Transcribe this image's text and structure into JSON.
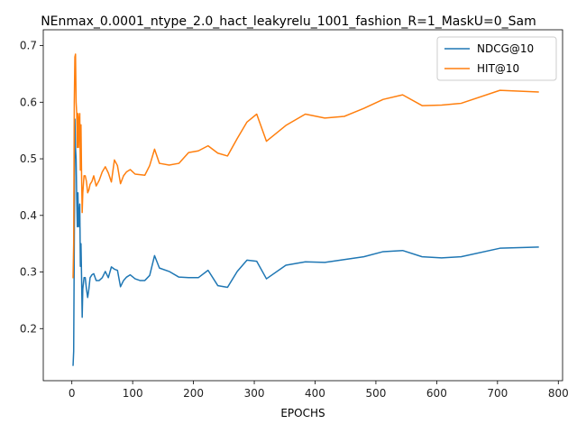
{
  "chart_data": {
    "type": "line",
    "title": "NEnmax_0.0001_ntype_2.0_hact_leakyrelu_1001_fashion_R=1_MaskU=0_Sam",
    "xlabel": "EPOCHS",
    "ylabel": "",
    "xlim": [
      -47,
      807
    ],
    "ylim": [
      0.108,
      0.728
    ],
    "xticks": [
      0,
      100,
      200,
      300,
      400,
      500,
      600,
      700,
      800
    ],
    "yticks": [
      0.2,
      0.3,
      0.4,
      0.5,
      0.6,
      0.7
    ],
    "legend_position": "top-right",
    "grid": false,
    "series": [
      {
        "name": "NDCG@10",
        "color": "#1f77b4",
        "points": [
          [
            1,
            0.135
          ],
          [
            2,
            0.135
          ],
          [
            3,
            0.16
          ],
          [
            4,
            0.35
          ],
          [
            5,
            0.57
          ],
          [
            6,
            0.52
          ],
          [
            7,
            0.5
          ],
          [
            8,
            0.43
          ],
          [
            9,
            0.38
          ],
          [
            10,
            0.44
          ],
          [
            11,
            0.38
          ],
          [
            12,
            0.4
          ],
          [
            13,
            0.42
          ],
          [
            14,
            0.31
          ],
          [
            15,
            0.35
          ],
          [
            16,
            0.29
          ],
          [
            17,
            0.22
          ],
          [
            18,
            0.27
          ],
          [
            20,
            0.29
          ],
          [
            22,
            0.29
          ],
          [
            24,
            0.27
          ],
          [
            26,
            0.255
          ],
          [
            28,
            0.27
          ],
          [
            30,
            0.29
          ],
          [
            33,
            0.295
          ],
          [
            36,
            0.297
          ],
          [
            40,
            0.285
          ],
          [
            45,
            0.285
          ],
          [
            50,
            0.29
          ],
          [
            55,
            0.301
          ],
          [
            60,
            0.29
          ],
          [
            65,
            0.309
          ],
          [
            70,
            0.305
          ],
          [
            75,
            0.303
          ],
          [
            80,
            0.274
          ],
          [
            85,
            0.285
          ],
          [
            90,
            0.291
          ],
          [
            96,
            0.295
          ],
          [
            104,
            0.288
          ],
          [
            112,
            0.285
          ],
          [
            120,
            0.285
          ],
          [
            128,
            0.294
          ],
          [
            136,
            0.329
          ],
          [
            144,
            0.307
          ],
          [
            160,
            0.301
          ],
          [
            176,
            0.291
          ],
          [
            192,
            0.29
          ],
          [
            208,
            0.29
          ],
          [
            224,
            0.303
          ],
          [
            240,
            0.276
          ],
          [
            256,
            0.273
          ],
          [
            272,
            0.301
          ],
          [
            288,
            0.321
          ],
          [
            304,
            0.319
          ],
          [
            320,
            0.288
          ],
          [
            352,
            0.312
          ],
          [
            384,
            0.318
          ],
          [
            416,
            0.317
          ],
          [
            448,
            0.322
          ],
          [
            480,
            0.327
          ],
          [
            512,
            0.336
          ],
          [
            544,
            0.338
          ],
          [
            576,
            0.327
          ],
          [
            608,
            0.325
          ],
          [
            640,
            0.327
          ],
          [
            704,
            0.342
          ],
          [
            768,
            0.344
          ]
        ]
      },
      {
        "name": "HIT@10",
        "color": "#ff7f0e",
        "points": [
          [
            1,
            0.29
          ],
          [
            2,
            0.29
          ],
          [
            3,
            0.35
          ],
          [
            4,
            0.6
          ],
          [
            5,
            0.68
          ],
          [
            6,
            0.685
          ],
          [
            7,
            0.6
          ],
          [
            8,
            0.58
          ],
          [
            9,
            0.52
          ],
          [
            10,
            0.58
          ],
          [
            11,
            0.52
          ],
          [
            12,
            0.57
          ],
          [
            13,
            0.58
          ],
          [
            14,
            0.48
          ],
          [
            15,
            0.56
          ],
          [
            16,
            0.47
          ],
          [
            17,
            0.405
          ],
          [
            18,
            0.44
          ],
          [
            20,
            0.47
          ],
          [
            22,
            0.47
          ],
          [
            24,
            0.46
          ],
          [
            26,
            0.44
          ],
          [
            28,
            0.445
          ],
          [
            30,
            0.455
          ],
          [
            33,
            0.46
          ],
          [
            36,
            0.47
          ],
          [
            40,
            0.452
          ],
          [
            45,
            0.462
          ],
          [
            50,
            0.477
          ],
          [
            55,
            0.486
          ],
          [
            60,
            0.475
          ],
          [
            65,
            0.459
          ],
          [
            70,
            0.498
          ],
          [
            75,
            0.488
          ],
          [
            80,
            0.456
          ],
          [
            85,
            0.47
          ],
          [
            90,
            0.477
          ],
          [
            96,
            0.481
          ],
          [
            104,
            0.473
          ],
          [
            112,
            0.472
          ],
          [
            120,
            0.471
          ],
          [
            128,
            0.488
          ],
          [
            136,
            0.517
          ],
          [
            144,
            0.492
          ],
          [
            160,
            0.489
          ],
          [
            176,
            0.492
          ],
          [
            192,
            0.511
          ],
          [
            208,
            0.514
          ],
          [
            224,
            0.523
          ],
          [
            240,
            0.51
          ],
          [
            256,
            0.505
          ],
          [
            272,
            0.536
          ],
          [
            288,
            0.565
          ],
          [
            304,
            0.579
          ],
          [
            320,
            0.531
          ],
          [
            352,
            0.559
          ],
          [
            384,
            0.579
          ],
          [
            416,
            0.572
          ],
          [
            448,
            0.575
          ],
          [
            480,
            0.589
          ],
          [
            512,
            0.605
          ],
          [
            544,
            0.613
          ],
          [
            576,
            0.594
          ],
          [
            608,
            0.595
          ],
          [
            640,
            0.598
          ],
          [
            704,
            0.621
          ],
          [
            768,
            0.618
          ]
        ]
      }
    ]
  }
}
